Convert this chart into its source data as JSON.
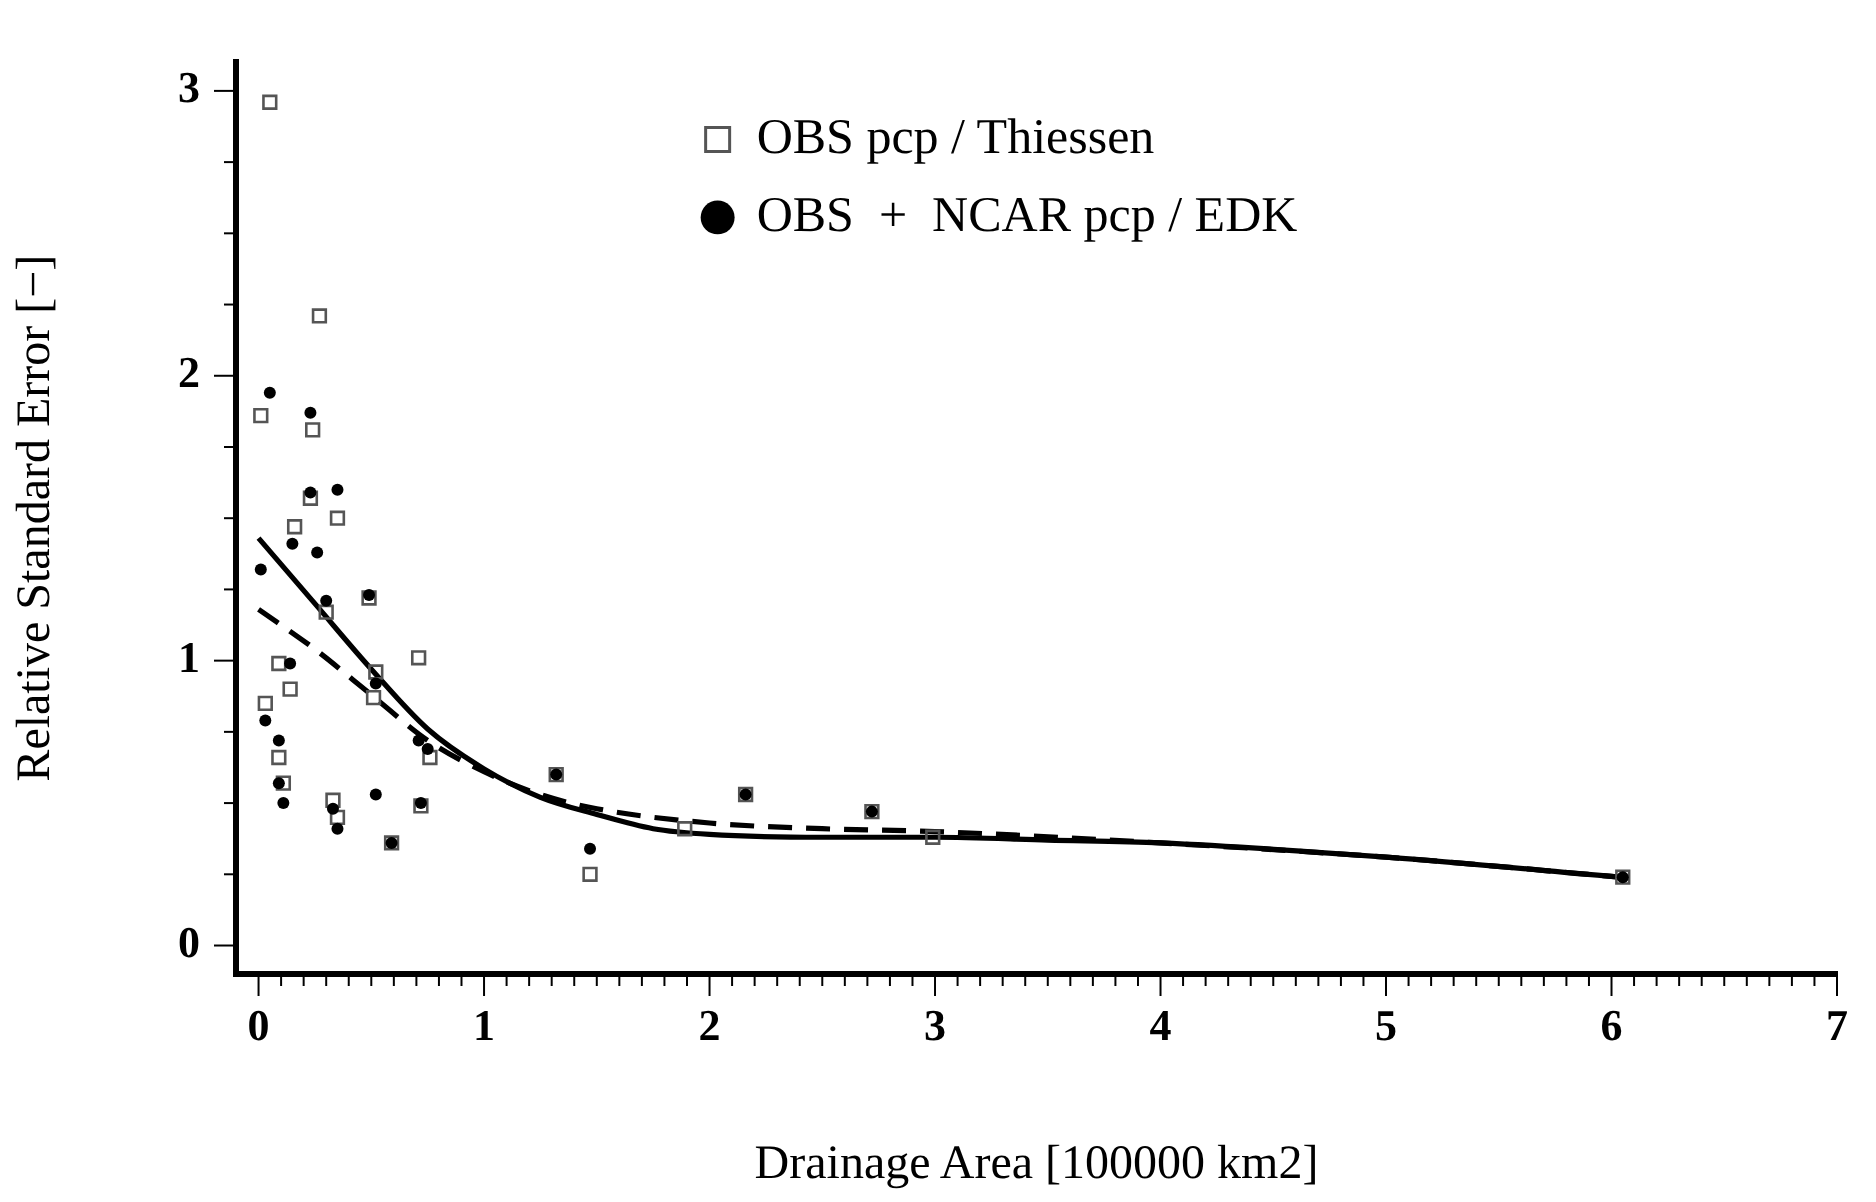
{
  "chart_data": {
    "type": "scatter",
    "xlabel": "Drainage Area [100000 km2]",
    "ylabel": "Relative Standard Error [−]",
    "xlim": [
      -0.1,
      7
    ],
    "ylim": [
      -0.1,
      3.1
    ],
    "xticks": [
      0,
      {
        "value": 0.1,
        "label": null
      },
      {
        "value": 0.2,
        "label": null
      },
      {
        "value": 0.3,
        "label": null
      },
      {
        "value": 0.4,
        "label": null
      },
      {
        "value": 0.5,
        "label": null
      },
      {
        "value": 0.6,
        "label": null
      },
      {
        "value": 0.7,
        "label": null
      },
      {
        "value": 0.8,
        "label": null
      },
      {
        "value": 0.9,
        "label": null
      },
      1,
      {
        "value": 1.1,
        "label": null
      },
      {
        "value": 1.2,
        "label": null
      },
      {
        "value": 1.3,
        "label": null
      },
      {
        "value": 1.4,
        "label": null
      },
      {
        "value": 1.5,
        "label": null
      },
      {
        "value": 1.6,
        "label": null
      },
      {
        "value": 1.7,
        "label": null
      },
      {
        "value": 1.8,
        "label": null
      },
      {
        "value": 1.9,
        "label": null
      },
      2,
      {
        "value": 2.1,
        "label": null
      },
      {
        "value": 2.2,
        "label": null
      },
      {
        "value": 2.3,
        "label": null
      },
      {
        "value": 2.4,
        "label": null
      },
      {
        "value": 2.5,
        "label": null
      },
      {
        "value": 2.6,
        "label": null
      },
      {
        "value": 2.7,
        "label": null
      },
      {
        "value": 2.8,
        "label": null
      },
      {
        "value": 2.9,
        "label": null
      },
      3,
      {
        "value": 3.1,
        "label": null
      },
      {
        "value": 3.2,
        "label": null
      },
      {
        "value": 3.3,
        "label": null
      },
      {
        "value": 3.4,
        "label": null
      },
      {
        "value": 3.5,
        "label": null
      },
      {
        "value": 3.6,
        "label": null
      },
      {
        "value": 3.7,
        "label": null
      },
      {
        "value": 3.8,
        "label": null
      },
      {
        "value": 3.9,
        "label": null
      },
      4,
      {
        "value": 4.1,
        "label": null
      },
      {
        "value": 4.2,
        "label": null
      },
      {
        "value": 4.3,
        "label": null
      },
      {
        "value": 4.4,
        "label": null
      },
      {
        "value": 4.5,
        "label": null
      },
      {
        "value": 4.6,
        "label": null
      },
      {
        "value": 4.7,
        "label": null
      },
      {
        "value": 4.8,
        "label": null
      },
      {
        "value": 4.9,
        "label": null
      },
      5,
      {
        "value": 5.1,
        "label": null
      },
      {
        "value": 5.2,
        "label": null
      },
      {
        "value": 5.3,
        "label": null
      },
      {
        "value": 5.4,
        "label": null
      },
      {
        "value": 5.5,
        "label": null
      },
      {
        "value": 5.6,
        "label": null
      },
      {
        "value": 5.7,
        "label": null
      },
      {
        "value": 5.8,
        "label": null
      },
      {
        "value": 5.9,
        "label": null
      },
      6,
      {
        "value": 6.1,
        "label": null
      },
      {
        "value": 6.2,
        "label": null
      },
      {
        "value": 6.3,
        "label": null
      },
      {
        "value": 6.4,
        "label": null
      },
      {
        "value": 6.5,
        "label": null
      },
      {
        "value": 6.6,
        "label": null
      },
      {
        "value": 6.7,
        "label": null
      },
      {
        "value": 6.8,
        "label": null
      },
      {
        "value": 6.9,
        "label": null
      },
      7
    ],
    "yticks": [
      0,
      {
        "value": 0.25,
        "label": null
      },
      {
        "value": 0.5,
        "label": null
      },
      {
        "value": 0.75,
        "label": null
      },
      1,
      {
        "value": 1.25,
        "label": null
      },
      {
        "value": 1.5,
        "label": null
      },
      {
        "value": 1.75,
        "label": null
      },
      2,
      {
        "value": 2.25,
        "label": null
      },
      {
        "value": 2.5,
        "label": null
      },
      {
        "value": 2.75,
        "label": null
      },
      3
    ],
    "grid": false,
    "legend": "top",
    "series": [
      {
        "name": "OBS pcp / Thiessen",
        "type": "scatter",
        "marker": "square",
        "color": "#555555",
        "x": [
          0.05,
          0.01,
          0.03,
          0.09,
          0.14,
          0.09,
          0.11,
          0.16,
          0.27,
          0.24,
          0.23,
          0.35,
          0.3,
          0.49,
          0.52,
          0.51,
          0.71,
          0.76,
          0.33,
          0.35,
          0.59,
          0.72,
          1.32,
          1.47,
          1.89,
          2.16,
          2.72,
          2.99,
          6.05
        ],
        "values": [
          2.96,
          1.86,
          0.85,
          0.99,
          0.9,
          0.66,
          0.57,
          1.47,
          2.21,
          1.81,
          1.57,
          1.5,
          1.17,
          1.22,
          0.96,
          0.87,
          1.01,
          0.66,
          0.51,
          0.45,
          0.36,
          0.49,
          0.6,
          0.25,
          0.41,
          0.53,
          0.47,
          0.38,
          0.24
        ]
      },
      {
        "type": "line",
        "line_style": "solid",
        "color": "#000000",
        "x": [
          0,
          0.25,
          0.5,
          0.75,
          1,
          1.25,
          1.5,
          1.75,
          2,
          2.5,
          3,
          3.5,
          4,
          5,
          6.04
        ],
        "values": [
          1.43,
          1.2,
          0.97,
          0.76,
          0.62,
          0.52,
          0.46,
          0.41,
          0.39,
          0.38,
          0.38,
          0.37,
          0.36,
          0.31,
          0.24
        ]
      },
      {
        "name": "OBS  +  NCAR pcp / EDK",
        "type": "scatter",
        "marker": "circle",
        "color": "#000000",
        "x": [
          0.05,
          0.01,
          0.23,
          0.23,
          0.35,
          0.15,
          0.26,
          0.3,
          0.49,
          0.14,
          0.52,
          0.03,
          0.09,
          0.09,
          0.11,
          0.71,
          0.75,
          0.52,
          0.33,
          0.35,
          0.59,
          0.72,
          1.32,
          1.47,
          2.16,
          2.72,
          6.05
        ],
        "values": [
          1.94,
          1.32,
          1.87,
          1.59,
          1.6,
          1.41,
          1.38,
          1.21,
          1.23,
          0.99,
          0.92,
          0.79,
          0.72,
          0.57,
          0.5,
          0.72,
          0.69,
          0.53,
          0.48,
          0.41,
          0.36,
          0.5,
          0.6,
          0.34,
          0.53,
          0.47,
          0.24
        ]
      },
      {
        "type": "line",
        "line_style": "dashed",
        "color": "#000000",
        "x": [
          0,
          0.25,
          0.5,
          0.75,
          1,
          1.25,
          1.5,
          2,
          2.5,
          3,
          4,
          5,
          6.04
        ],
        "values": [
          1.18,
          1.04,
          0.88,
          0.72,
          0.61,
          0.53,
          0.48,
          0.43,
          0.41,
          0.4,
          0.36,
          0.31,
          0.24
        ]
      }
    ]
  }
}
